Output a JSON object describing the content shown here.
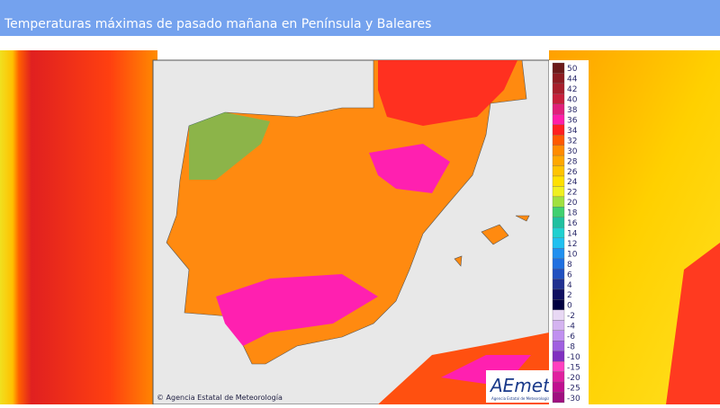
{
  "header": {
    "title": "Temperaturas máximas de pasado mañana en Península y Baleares"
  },
  "legend": {
    "entries": [
      {
        "value": 50,
        "color": "#6b1a1a"
      },
      {
        "value": 44,
        "color": "#8e1c22"
      },
      {
        "value": 42,
        "color": "#a81f2c"
      },
      {
        "value": 40,
        "color": "#c8203c"
      },
      {
        "value": 38,
        "color": "#e0207a"
      },
      {
        "value": 36,
        "color": "#ff1ea8"
      },
      {
        "value": 34,
        "color": "#ff2020"
      },
      {
        "value": 32,
        "color": "#ff5a00"
      },
      {
        "value": 30,
        "color": "#ff8c00"
      },
      {
        "value": 28,
        "color": "#ffa800"
      },
      {
        "value": 26,
        "color": "#ffc400"
      },
      {
        "value": 24,
        "color": "#ffe000"
      },
      {
        "value": 22,
        "color": "#f0f020"
      },
      {
        "value": 20,
        "color": "#a0e040"
      },
      {
        "value": 18,
        "color": "#40d070"
      },
      {
        "value": 16,
        "color": "#20c0a0"
      },
      {
        "value": 14,
        "color": "#20d0d0"
      },
      {
        "value": 12,
        "color": "#20c0f0"
      },
      {
        "value": 10,
        "color": "#2090f0"
      },
      {
        "value": 8,
        "color": "#2070e0"
      },
      {
        "value": 6,
        "color": "#2050c0"
      },
      {
        "value": 4,
        "color": "#203090"
      },
      {
        "value": 2,
        "color": "#101060"
      },
      {
        "value": 0,
        "color": "#000040"
      },
      {
        "value": -2,
        "color": "#e8d8f4"
      },
      {
        "value": -4,
        "color": "#d4b4f0"
      },
      {
        "value": -6,
        "color": "#c090f0"
      },
      {
        "value": -8,
        "color": "#a060e0"
      },
      {
        "value": -10,
        "color": "#8030c0"
      },
      {
        "value": -15,
        "color": "#ff40c0"
      },
      {
        "value": -20,
        "color": "#e020a0"
      },
      {
        "value": -25,
        "color": "#c01090"
      },
      {
        "value": -30,
        "color": "#a01080"
      }
    ]
  },
  "credit": "© Agencia Estatal de Meteorología",
  "logo": {
    "text": "AEmet",
    "subtitle": "Agencia Estatal de Meteorología"
  }
}
